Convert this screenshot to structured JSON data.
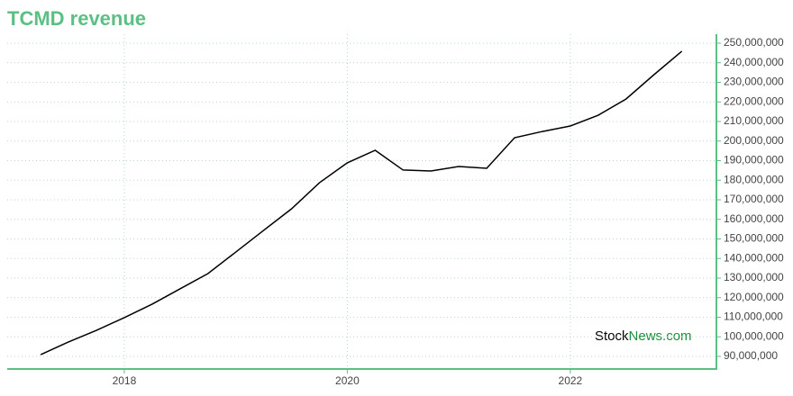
{
  "chart_data": {
    "type": "line",
    "title": "TCMD revenue",
    "x": [
      2017.25,
      2017.5,
      2017.75,
      2018,
      2018.25,
      2018.5,
      2018.75,
      2019,
      2019.25,
      2019.5,
      2019.75,
      2020,
      2020.25,
      2020.5,
      2020.75,
      2021,
      2021.25,
      2021.5,
      2021.75,
      2022,
      2022.25,
      2022.5,
      2022.75,
      2023
    ],
    "series": [
      {
        "name": "TCMD revenue",
        "color": "#000000",
        "values": [
          90900000,
          97400000,
          103300000,
          109800000,
          116700000,
          124500000,
          132300000,
          143300000,
          154400000,
          165400000,
          178700000,
          188900000,
          195300000,
          185200000,
          184700000,
          187000000,
          186100000,
          201700000,
          204900000,
          207700000,
          213200000,
          221500000,
          233900000,
          245900000
        ]
      }
    ],
    "xlim": [
      2016.95,
      2023.31
    ],
    "xticks": [
      2018,
      2020,
      2022
    ],
    "ylim": [
      83560000,
      254590000
    ],
    "yticks": [
      {
        "value": 90000000,
        "label": "90,000,000"
      },
      {
        "value": 100000000,
        "label": "100,000,000"
      },
      {
        "value": 110000000,
        "label": "110,000,000"
      },
      {
        "value": 120000000,
        "label": "120,000,000"
      },
      {
        "value": 130000000,
        "label": "130,000,000"
      },
      {
        "value": 140000000,
        "label": "140,000,000"
      },
      {
        "value": 150000000,
        "label": "150,000,000"
      },
      {
        "value": 160000000,
        "label": "160,000,000"
      },
      {
        "value": 170000000,
        "label": "170,000,000"
      },
      {
        "value": 180000000,
        "label": "180,000,000"
      },
      {
        "value": 190000000,
        "label": "190,000,000"
      },
      {
        "value": 200000000,
        "label": "200,000,000"
      },
      {
        "value": 210000000,
        "label": "210,000,000"
      },
      {
        "value": 220000000,
        "label": "220,000,000"
      },
      {
        "value": 230000000,
        "label": "230,000,000"
      },
      {
        "value": 240000000,
        "label": "240,000,000"
      },
      {
        "value": 250000000,
        "label": "250,000,000"
      }
    ],
    "y_axis_side": "right",
    "grid": true,
    "axis_color": "#5cbf84",
    "watermark": [
      "Stock",
      "News.com"
    ]
  }
}
